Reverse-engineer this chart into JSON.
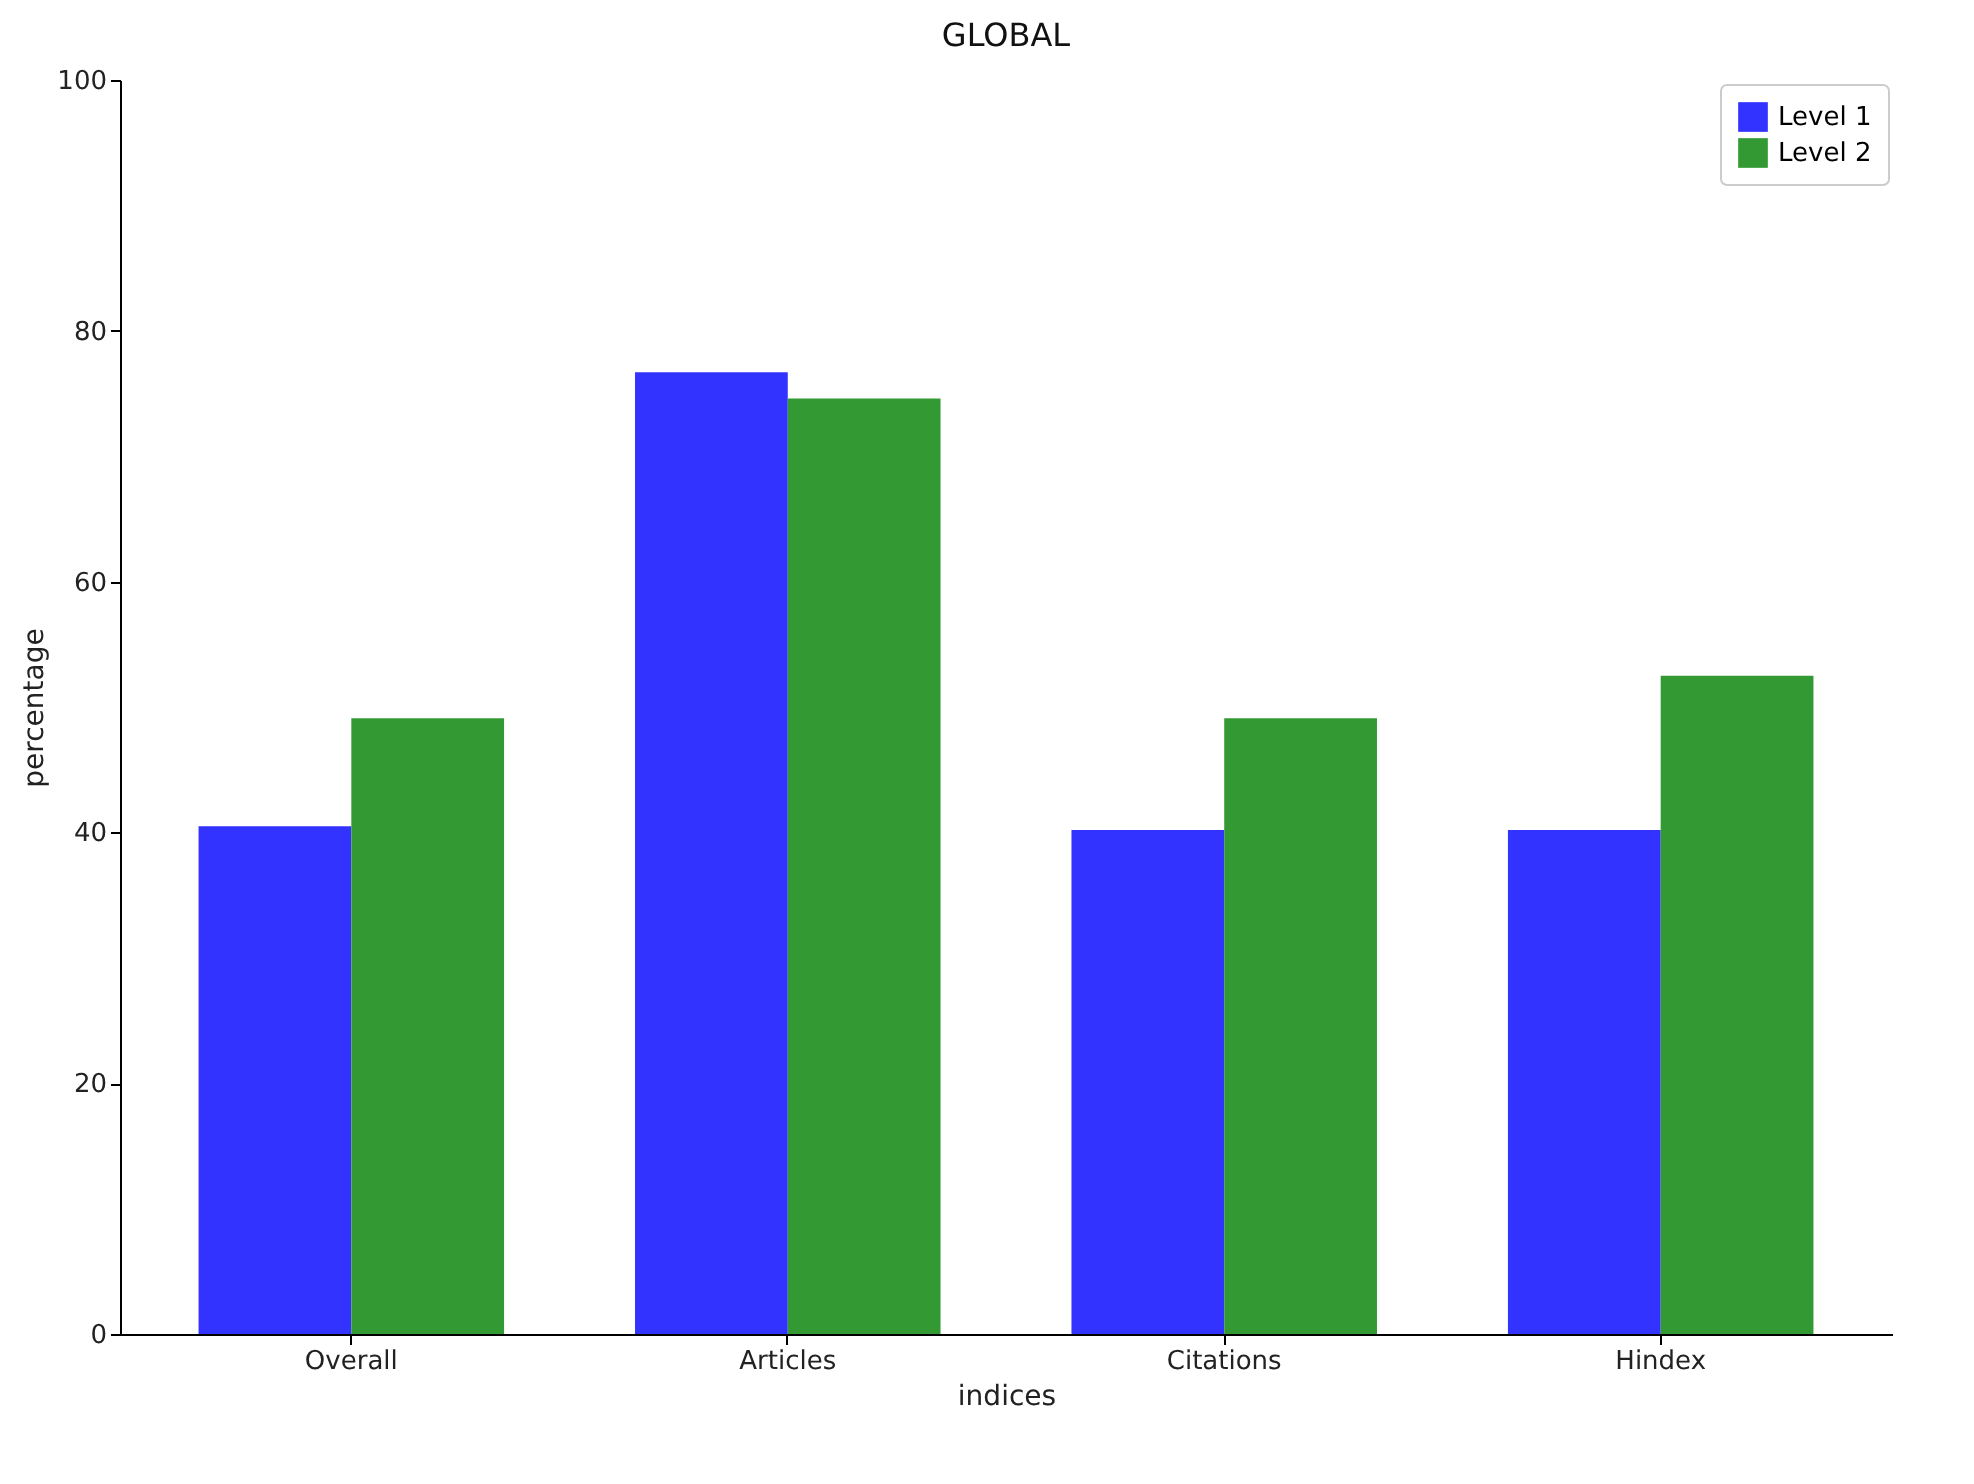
{
  "chart_data": {
    "type": "bar",
    "title": "GLOBAL",
    "xlabel": "indices",
    "ylabel": "percentage",
    "categories": [
      "Overall",
      "Articles",
      "Citations",
      "Hindex"
    ],
    "series": [
      {
        "name": "Level 1",
        "color": "#3333ff",
        "values": [
          40.5,
          76.7,
          40.2,
          40.2
        ]
      },
      {
        "name": "Level 2",
        "color": "#339933",
        "values": [
          49.1,
          74.6,
          49.1,
          52.5
        ]
      }
    ],
    "ylim": [
      0,
      100
    ],
    "yticks": [
      0,
      20,
      40,
      60,
      80,
      100
    ],
    "legend": "top right"
  }
}
